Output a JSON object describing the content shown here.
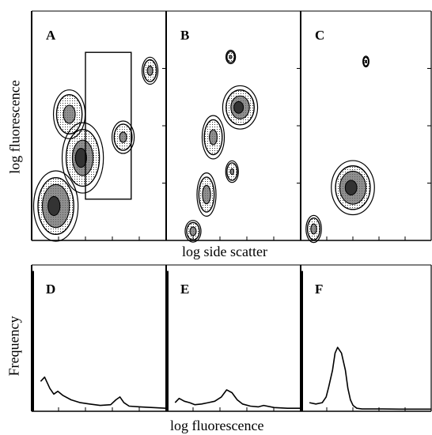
{
  "figure": {
    "ylabel_top": "log fluorescence",
    "xlabel_top": "log side scatter",
    "ylabel_bottom": "Frequency",
    "xlabel_bottom": "log fluorescence"
  },
  "colors": {
    "ink": "#000000",
    "shade": "#6a6a6a",
    "background": "#ffffff"
  },
  "chart_data": [
    {
      "type": "heatmap",
      "panel": "A",
      "label": "A",
      "xlabel": "log side scatter",
      "ylabel": "log fluorescence",
      "gate": {
        "x": [
          0.4,
          0.74
        ],
        "y": [
          0.18,
          0.82
        ]
      },
      "populations": [
        {
          "x": 0.18,
          "y": 0.15,
          "spread_x": 0.14,
          "spread_y": 0.13,
          "intensity": 1.0
        },
        {
          "x": 0.38,
          "y": 0.36,
          "spread_x": 0.13,
          "spread_y": 0.13,
          "intensity": 0.8
        },
        {
          "x": 0.28,
          "y": 0.55,
          "spread_x": 0.1,
          "spread_y": 0.09,
          "intensity": 0.55
        },
        {
          "x": 0.68,
          "y": 0.45,
          "spread_x": 0.07,
          "spread_y": 0.06,
          "intensity": 0.45
        },
        {
          "x": 0.88,
          "y": 0.74,
          "spread_x": 0.05,
          "spread_y": 0.05,
          "intensity": 0.5
        }
      ]
    },
    {
      "type": "heatmap",
      "panel": "B",
      "label": "B",
      "xlabel": "log side scatter",
      "ylabel": "log fluorescence",
      "populations": [
        {
          "x": 0.3,
          "y": 0.2,
          "spread_x": 0.06,
          "spread_y": 0.08,
          "intensity": 0.65
        },
        {
          "x": 0.35,
          "y": 0.45,
          "spread_x": 0.07,
          "spread_y": 0.08,
          "intensity": 0.5
        },
        {
          "x": 0.55,
          "y": 0.58,
          "spread_x": 0.11,
          "spread_y": 0.08,
          "intensity": 0.85
        },
        {
          "x": 0.49,
          "y": 0.3,
          "spread_x": 0.04,
          "spread_y": 0.04,
          "intensity": 0.35
        },
        {
          "x": 0.48,
          "y": 0.8,
          "spread_x": 0.03,
          "spread_y": 0.025,
          "intensity": 0.3
        },
        {
          "x": 0.2,
          "y": 0.04,
          "spread_x": 0.05,
          "spread_y": 0.04,
          "intensity": 0.6
        }
      ]
    },
    {
      "type": "heatmap",
      "panel": "C",
      "label": "C",
      "xlabel": "log side scatter",
      "ylabel": "log fluorescence",
      "populations": [
        {
          "x": 0.4,
          "y": 0.23,
          "spread_x": 0.14,
          "spread_y": 0.1,
          "intensity": 1.0
        },
        {
          "x": 0.1,
          "y": 0.05,
          "spread_x": 0.05,
          "spread_y": 0.05,
          "intensity": 0.55
        },
        {
          "x": 0.5,
          "y": 0.78,
          "spread_x": 0.02,
          "spread_y": 0.02,
          "intensity": 0.3
        }
      ]
    },
    {
      "type": "line",
      "panel": "D",
      "label": "D",
      "xlabel": "log fluorescence",
      "ylabel": "Frequency",
      "x": [
        0,
        0.02,
        0.05,
        0.08,
        0.12,
        0.15,
        0.18,
        0.22,
        0.28,
        0.35,
        0.42,
        0.5,
        0.58,
        0.62,
        0.65,
        0.68,
        0.72,
        0.8,
        0.9,
        1.0
      ],
      "y": [
        0.98,
        0.95,
        0.2,
        0.23,
        0.15,
        0.11,
        0.13,
        0.1,
        0.07,
        0.05,
        0.04,
        0.03,
        0.035,
        0.07,
        0.09,
        0.05,
        0.025,
        0.02,
        0.015,
        0.01
      ]
    },
    {
      "type": "line",
      "panel": "E",
      "label": "E",
      "xlabel": "log fluorescence",
      "ylabel": "Frequency",
      "x": [
        0,
        0.02,
        0.05,
        0.08,
        0.12,
        0.16,
        0.2,
        0.25,
        0.3,
        0.35,
        0.4,
        0.44,
        0.48,
        0.52,
        0.56,
        0.62,
        0.68,
        0.72,
        0.8,
        0.9,
        1.0
      ],
      "y": [
        0.98,
        0.95,
        0.05,
        0.08,
        0.06,
        0.05,
        0.035,
        0.04,
        0.05,
        0.06,
        0.09,
        0.14,
        0.12,
        0.07,
        0.04,
        0.025,
        0.02,
        0.03,
        0.015,
        0.01,
        0.01
      ]
    },
    {
      "type": "line",
      "panel": "F",
      "label": "F",
      "xlabel": "log fluorescence",
      "ylabel": "Frequency",
      "x": [
        0,
        0.02,
        0.05,
        0.1,
        0.15,
        0.18,
        0.2,
        0.23,
        0.25,
        0.27,
        0.3,
        0.33,
        0.35,
        0.37,
        0.39,
        0.42,
        0.46,
        0.52,
        0.62,
        0.75,
        0.88,
        1.0
      ],
      "y": [
        0.98,
        0.95,
        0.05,
        0.04,
        0.05,
        0.09,
        0.16,
        0.28,
        0.4,
        0.44,
        0.4,
        0.28,
        0.15,
        0.07,
        0.03,
        0.01,
        0.005,
        0.005,
        0.005,
        0.004,
        0.004,
        0.004
      ]
    }
  ]
}
